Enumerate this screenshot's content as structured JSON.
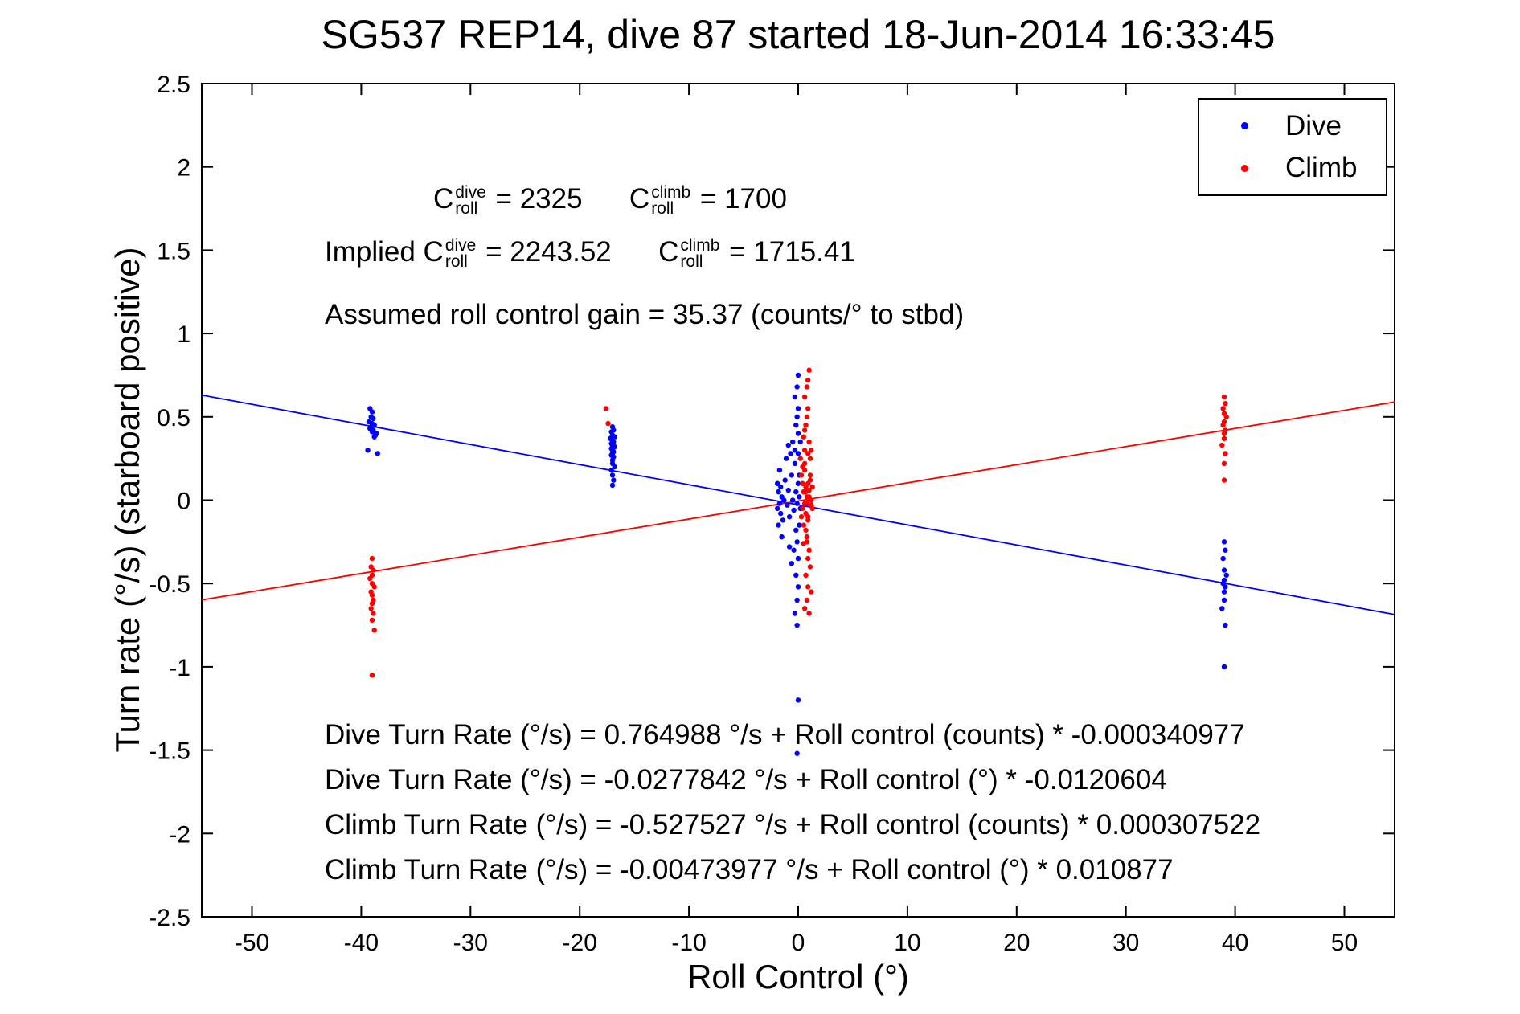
{
  "title": "SG537 REP14, dive 87 started 18-Jun-2014 16:33:45",
  "legend": {
    "position": "top-right",
    "items": [
      {
        "label": "Dive",
        "color": "#0000ff"
      },
      {
        "label": "Climb",
        "color": "#ff0000"
      }
    ]
  },
  "annotations": {
    "coeff_line1": [
      {
        "t": "C"
      },
      {
        "sup": "dive",
        "sub": "roll"
      },
      {
        "t": " = 2325      C"
      },
      {
        "sup": "climb",
        "sub": "roll"
      },
      {
        "t": " = 1700"
      }
    ],
    "coeff_line2": [
      {
        "t": "Implied C"
      },
      {
        "sup": "dive",
        "sub": "roll"
      },
      {
        "t": " = 2243.52      C"
      },
      {
        "sup": "climb",
        "sub": "roll"
      },
      {
        "t": " = 1715.41"
      }
    ],
    "gain_line": "Assumed roll control gain = 35.37 (counts/° to stbd)",
    "fit_lines_text": [
      "Dive Turn Rate (°/s) = 0.764988 °/s + Roll control (counts) * -0.000340977",
      "Dive Turn Rate (°/s) = -0.0277842 °/s + Roll control (°) * -0.0120604",
      "Climb Turn Rate (°/s) = -0.527527 °/s + Roll control (counts) * 0.000307522",
      "Climb Turn Rate (°/s) = -0.00473977 °/s + Roll control (°) * 0.010877"
    ]
  },
  "chart_data": {
    "type": "scatter",
    "title": "SG537 REP14, dive 87 started 18-Jun-2014 16:33:45",
    "xlabel": "Roll Control (°)",
    "ylabel": "Turn rate (°/s) (starboard positive)",
    "xlim": [
      -54.6,
      54.6
    ],
    "ylim": [
      -2.5,
      2.5
    ],
    "xticks": [
      -50,
      -40,
      -30,
      -20,
      -10,
      0,
      10,
      20,
      30,
      40,
      50
    ],
    "yticks": [
      -2.5,
      -2,
      -1.5,
      -1,
      -0.5,
      0,
      0.5,
      1,
      1.5,
      2,
      2.5
    ],
    "grid": false,
    "legend_position": "top-right",
    "series": [
      {
        "name": "Dive",
        "color": "#0000ff",
        "marker": "dot",
        "points": [
          [
            -39.2,
            0.55
          ],
          [
            -39,
            0.53
          ],
          [
            -39.1,
            0.5
          ],
          [
            -38.9,
            0.49
          ],
          [
            -39.3,
            0.47
          ],
          [
            -39,
            0.46
          ],
          [
            -38.8,
            0.45
          ],
          [
            -39.1,
            0.44
          ],
          [
            -39.2,
            0.43
          ],
          [
            -38.9,
            0.42
          ],
          [
            -39,
            0.41
          ],
          [
            -38.6,
            0.4
          ],
          [
            -38.7,
            0.39
          ],
          [
            -38.8,
            0.38
          ],
          [
            -39.4,
            0.3
          ],
          [
            -38.5,
            0.28
          ],
          [
            -17,
            0.44
          ],
          [
            -16.9,
            0.42
          ],
          [
            -17.1,
            0.41
          ],
          [
            -17,
            0.39
          ],
          [
            -16.8,
            0.38
          ],
          [
            -17.2,
            0.37
          ],
          [
            -17,
            0.36
          ],
          [
            -16.9,
            0.35
          ],
          [
            -17.1,
            0.34
          ],
          [
            -17,
            0.33
          ],
          [
            -16.8,
            0.32
          ],
          [
            -17.1,
            0.31
          ],
          [
            -17,
            0.3
          ],
          [
            -16.9,
            0.29
          ],
          [
            -17,
            0.28
          ],
          [
            -17.1,
            0.27
          ],
          [
            -16.9,
            0.26
          ],
          [
            -17,
            0.24
          ],
          [
            -17,
            0.22
          ],
          [
            -16.8,
            0.2
          ],
          [
            -17.1,
            0.18
          ],
          [
            -17,
            0.15
          ],
          [
            -16.9,
            0.12
          ],
          [
            -17,
            0.09
          ],
          [
            -1.8,
            0.05
          ],
          [
            -1.7,
            -0.02
          ],
          [
            -1.9,
            0.1
          ],
          [
            -1.6,
            -0.08
          ],
          [
            -1.8,
            -0.15
          ],
          [
            -1.5,
            0.02
          ],
          [
            -1.7,
            0.18
          ],
          [
            -1.6,
            0.08
          ],
          [
            -1.9,
            -0.05
          ],
          [
            -1.4,
            -0.12
          ],
          [
            -1.3,
            0
          ],
          [
            -1.5,
            -0.22
          ],
          [
            -1.2,
            0.12
          ],
          [
            -1,
            -0.03
          ],
          [
            -0.9,
            0.06
          ],
          [
            -0.8,
            -0.1
          ],
          [
            -0.6,
            0.15
          ],
          [
            -0.5,
            0
          ],
          [
            -0.4,
            -0.06
          ],
          [
            -0.3,
            0.22
          ],
          [
            -0.2,
            -0.18
          ],
          [
            -0.3,
            0.3
          ],
          [
            -0.2,
            0.05
          ],
          [
            -0.1,
            -0.02
          ],
          [
            0,
            0.1
          ],
          [
            -0.1,
            -0.25
          ],
          [
            0,
            -0.35
          ],
          [
            0.1,
            0.02
          ],
          [
            0,
            0.28
          ],
          [
            -0.2,
            0.45
          ],
          [
            -0.1,
            0.5
          ],
          [
            0,
            0.55
          ],
          [
            -0.3,
            0.62
          ],
          [
            -0.1,
            0.68
          ],
          [
            0,
            0.75
          ],
          [
            -0.2,
            -0.45
          ],
          [
            0,
            -0.52
          ],
          [
            -0.1,
            -0.6
          ],
          [
            -0.3,
            -0.68
          ],
          [
            -0.1,
            -0.75
          ],
          [
            0.1,
            -0.15
          ],
          [
            0.2,
            -0.05
          ],
          [
            0.1,
            0.15
          ],
          [
            0.2,
            0.35
          ],
          [
            0,
            0.4
          ],
          [
            -0.5,
            0.35
          ],
          [
            -0.7,
            0.28
          ],
          [
            -0.9,
            0.33
          ],
          [
            -1.1,
            0.25
          ],
          [
            -0.4,
            -0.3
          ],
          [
            -0.6,
            -0.38
          ],
          [
            -0.8,
            -0.28
          ],
          [
            0,
            -1.2
          ],
          [
            -0.1,
            -1.52
          ],
          [
            39,
            -0.25
          ],
          [
            39.1,
            -0.3
          ],
          [
            38.9,
            -0.35
          ],
          [
            39,
            -0.42
          ],
          [
            39.2,
            -0.45
          ],
          [
            39,
            -0.48
          ],
          [
            38.9,
            -0.5
          ],
          [
            39.1,
            -0.52
          ],
          [
            39,
            -0.55
          ],
          [
            39,
            -0.6
          ],
          [
            38.8,
            -0.65
          ],
          [
            39.1,
            -0.75
          ],
          [
            39,
            -1
          ]
        ]
      },
      {
        "name": "Climb",
        "color": "#ff0000",
        "marker": "dot",
        "points": [
          [
            -39,
            -0.35
          ],
          [
            -39.1,
            -0.4
          ],
          [
            -38.9,
            -0.42
          ],
          [
            -39,
            -0.45
          ],
          [
            -39.2,
            -0.47
          ],
          [
            -39,
            -0.5
          ],
          [
            -38.8,
            -0.52
          ],
          [
            -39.1,
            -0.55
          ],
          [
            -39,
            -0.57
          ],
          [
            -38.9,
            -0.6
          ],
          [
            -39,
            -0.62
          ],
          [
            -39.1,
            -0.65
          ],
          [
            -38.9,
            -0.68
          ],
          [
            -39,
            -0.72
          ],
          [
            -38.8,
            -0.78
          ],
          [
            -39,
            -1.05
          ],
          [
            -17.6,
            0.55
          ],
          [
            -17.4,
            0.46
          ],
          [
            0.5,
            0.05
          ],
          [
            0.6,
            -0.02
          ],
          [
            0.4,
            0.1
          ],
          [
            0.7,
            -0.08
          ],
          [
            0.5,
            -0.15
          ],
          [
            0.8,
            0.02
          ],
          [
            0.6,
            0.18
          ],
          [
            0.7,
            0.08
          ],
          [
            0.4,
            -0.05
          ],
          [
            0.9,
            -0.12
          ],
          [
            1,
            0
          ],
          [
            0.8,
            -0.22
          ],
          [
            1.1,
            0.12
          ],
          [
            1.2,
            -0.03
          ],
          [
            1,
            0.06
          ],
          [
            0.9,
            -0.1
          ],
          [
            1.1,
            0.15
          ],
          [
            1.2,
            0
          ],
          [
            0.5,
            -0.26
          ],
          [
            0.6,
            0.22
          ],
          [
            0.7,
            -0.18
          ],
          [
            0.6,
            0.3
          ],
          [
            0.7,
            0.05
          ],
          [
            0.8,
            -0.02
          ],
          [
            0.9,
            0.1
          ],
          [
            0.8,
            -0.25
          ],
          [
            0.9,
            -0.35
          ],
          [
            1,
            0.02
          ],
          [
            0.9,
            0.28
          ],
          [
            0.7,
            0.45
          ],
          [
            0.8,
            0.5
          ],
          [
            0.9,
            0.55
          ],
          [
            0.6,
            0.62
          ],
          [
            0.8,
            0.68
          ],
          [
            0.9,
            0.72
          ],
          [
            1,
            0.78
          ],
          [
            0.7,
            -0.45
          ],
          [
            0.9,
            -0.52
          ],
          [
            0.8,
            -0.6
          ],
          [
            0.6,
            -0.65
          ],
          [
            1,
            -0.3
          ],
          [
            1.1,
            -0.4
          ],
          [
            0.5,
            0.38
          ],
          [
            0.6,
            0.42
          ],
          [
            1,
            0.35
          ],
          [
            1.1,
            0.25
          ],
          [
            1.2,
            0.3
          ],
          [
            0.4,
            0.2
          ],
          [
            0.3,
            0.15
          ],
          [
            0.3,
            -0.1
          ],
          [
            1.3,
            -0.05
          ],
          [
            1.3,
            0.08
          ],
          [
            0.2,
            0.25
          ],
          [
            1.2,
            -0.55
          ],
          [
            1,
            -0.68
          ],
          [
            39,
            0.62
          ],
          [
            39.1,
            0.58
          ],
          [
            38.9,
            0.55
          ],
          [
            39,
            0.52
          ],
          [
            39.2,
            0.5
          ],
          [
            39,
            0.47
          ],
          [
            38.9,
            0.45
          ],
          [
            39.1,
            0.42
          ],
          [
            39,
            0.4
          ],
          [
            39,
            0.37
          ],
          [
            38.8,
            0.33
          ],
          [
            39.1,
            0.28
          ],
          [
            39,
            0.22
          ],
          [
            39,
            0.12
          ]
        ]
      }
    ],
    "fit_lines": [
      {
        "name": "dive-fit",
        "color": "#0000ff",
        "intercept": -0.0277842,
        "slope": -0.0120604
      },
      {
        "name": "climb-fit",
        "color": "#ff0000",
        "intercept": -0.00473977,
        "slope": 0.010877
      }
    ]
  }
}
